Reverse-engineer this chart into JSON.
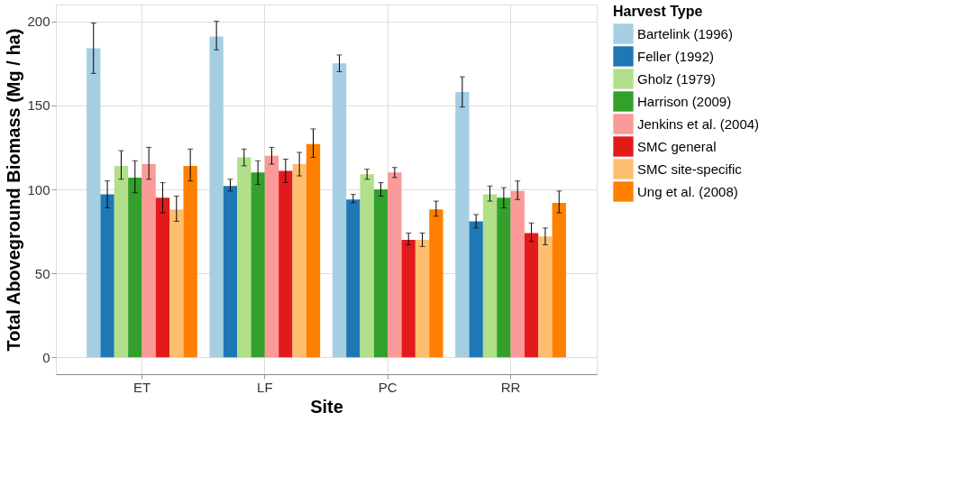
{
  "chart_data": {
    "type": "bar",
    "xlabel": "Site",
    "ylabel": "Total Aboveground Biomass (Mg / ha)",
    "legend_title": "Harvest Type",
    "categories": [
      "ET",
      "LF",
      "PC",
      "RR"
    ],
    "ylim": [
      -10,
      210
    ],
    "yticks": [
      0,
      50,
      100,
      150,
      200
    ],
    "grid": true,
    "legend": "right",
    "series": [
      {
        "name": "Bartelink (1996)",
        "color": "#a6cee3",
        "values": [
          184,
          191,
          175,
          158
        ],
        "errors": [
          [
            169,
            199
          ],
          [
            183,
            200
          ],
          [
            170,
            180
          ],
          [
            149,
            167
          ]
        ]
      },
      {
        "name": "Feller (1992)",
        "color": "#1f78b4",
        "values": [
          97,
          102,
          94,
          81
        ],
        "errors": [
          [
            89,
            105
          ],
          [
            99,
            106
          ],
          [
            92,
            97
          ],
          [
            77,
            85
          ]
        ]
      },
      {
        "name": "Gholz (1979)",
        "color": "#b2df8a",
        "values": [
          114,
          119,
          109,
          97
        ],
        "errors": [
          [
            106,
            123
          ],
          [
            114,
            124
          ],
          [
            106,
            112
          ],
          [
            93,
            102
          ]
        ]
      },
      {
        "name": "Harrison (2009)",
        "color": "#33a02c",
        "values": [
          107,
          110,
          100,
          95
        ],
        "errors": [
          [
            98,
            117
          ],
          [
            103,
            117
          ],
          [
            96,
            104
          ],
          [
            89,
            101
          ]
        ]
      },
      {
        "name": "Jenkins et al. (2004)",
        "color": "#fb9a99",
        "values": [
          115,
          120,
          110,
          99
        ],
        "errors": [
          [
            106,
            125
          ],
          [
            115,
            125
          ],
          [
            107,
            113
          ],
          [
            94,
            105
          ]
        ]
      },
      {
        "name": "SMC general",
        "color": "#e31a1c",
        "values": [
          95,
          111,
          70,
          74
        ],
        "errors": [
          [
            86,
            104
          ],
          [
            104,
            118
          ],
          [
            67,
            74
          ],
          [
            69,
            80
          ]
        ]
      },
      {
        "name": "SMC site-specific",
        "color": "#fdbf6f",
        "values": [
          88,
          115,
          70,
          72
        ],
        "errors": [
          [
            81,
            96
          ],
          [
            108,
            122
          ],
          [
            66,
            74
          ],
          [
            67,
            77
          ]
        ]
      },
      {
        "name": "Ung et al. (2008)",
        "color": "#ff7f00",
        "values": [
          114,
          127,
          88,
          92
        ],
        "errors": [
          [
            105,
            124
          ],
          [
            119,
            136
          ],
          [
            84,
            93
          ],
          [
            86,
            99
          ]
        ]
      }
    ]
  }
}
